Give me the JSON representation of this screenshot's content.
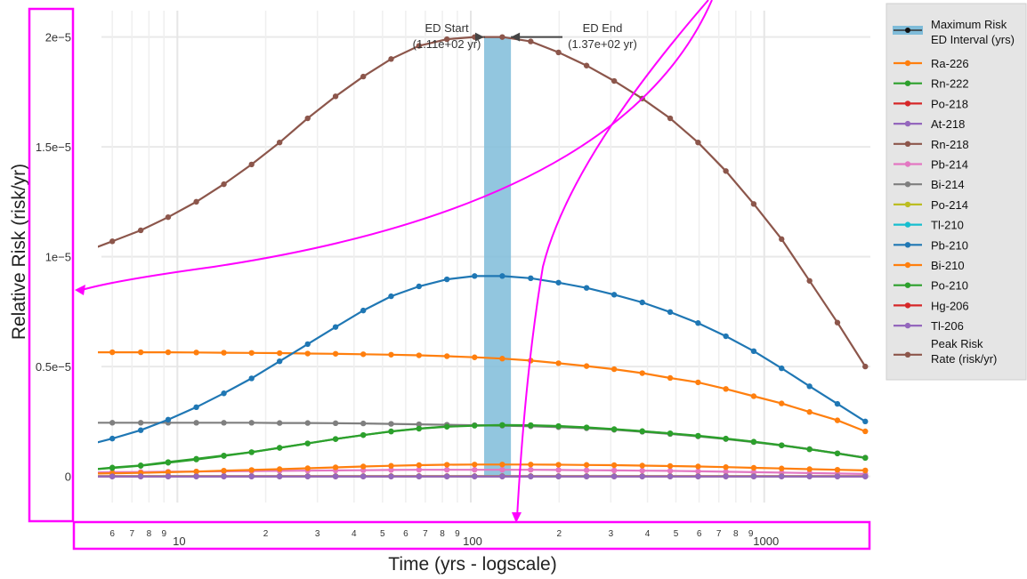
{
  "chart_data": {
    "type": "line",
    "xlabel": "Time (yrs - logscale)",
    "ylabel": "Relative Risk (risk/yr)",
    "x_scale": "log",
    "xlim": [
      4.5,
      2300
    ],
    "ylim": [
      -2e-06,
      2.12e-05
    ],
    "grid": true,
    "y_ticks": [
      {
        "value": 0,
        "label": "0"
      },
      {
        "value": 5e-06,
        "label": "0.5e−5"
      },
      {
        "value": 1e-05,
        "label": "1e−5"
      },
      {
        "value": 1.5e-05,
        "label": "1.5e−5"
      },
      {
        "value": 2e-05,
        "label": "2e−5"
      }
    ],
    "x_major_ticks": [
      {
        "value": 10,
        "label": "10"
      },
      {
        "value": 100,
        "label": "100"
      },
      {
        "value": 1000,
        "label": "1000"
      }
    ],
    "x_minor_ticks": [
      {
        "value": 6,
        "label": "6"
      },
      {
        "value": 7,
        "label": "7"
      },
      {
        "value": 8,
        "label": "8"
      },
      {
        "value": 9,
        "label": "9"
      },
      {
        "value": 20,
        "label": "2"
      },
      {
        "value": 30,
        "label": "3"
      },
      {
        "value": 40,
        "label": "4"
      },
      {
        "value": 50,
        "label": "5"
      },
      {
        "value": 60,
        "label": "6"
      },
      {
        "value": 70,
        "label": "7"
      },
      {
        "value": 80,
        "label": "8"
      },
      {
        "value": 90,
        "label": "9"
      },
      {
        "value": 200,
        "label": "2"
      },
      {
        "value": 300,
        "label": "3"
      },
      {
        "value": 400,
        "label": "4"
      },
      {
        "value": 500,
        "label": "5"
      },
      {
        "value": 600,
        "label": "6"
      },
      {
        "value": 700,
        "label": "7"
      },
      {
        "value": 800,
        "label": "8"
      },
      {
        "value": 900,
        "label": "9"
      }
    ],
    "x": [
      5,
      6,
      7.5,
      9.3,
      11.6,
      14.4,
      17.9,
      22.3,
      27.8,
      34.6,
      43,
      53.5,
      66.6,
      82.9,
      103,
      128,
      160,
      199,
      248,
      308,
      384,
      478,
      595,
      740,
      921,
      1146,
      1427,
      1776,
      2210
    ],
    "series": [
      {
        "name": "Ra-226",
        "color": "#ff7f0e",
        "values": [
          5.65e-06,
          5.65e-06,
          5.65e-06,
          5.65e-06,
          5.64e-06,
          5.63e-06,
          5.62e-06,
          5.61e-06,
          5.59e-06,
          5.58e-06,
          5.56e-06,
          5.54e-06,
          5.51e-06,
          5.47e-06,
          5.42e-06,
          5.36e-06,
          5.27e-06,
          5.15e-06,
          5.02e-06,
          4.88e-06,
          4.7e-06,
          4.48e-06,
          4.28e-06,
          3.98e-06,
          3.65e-06,
          3.32e-06,
          2.93e-06,
          2.55e-06,
          2.05e-06
        ]
      },
      {
        "name": "Rn-222",
        "color": "#2ca02c",
        "values": [
          3e-07,
          4e-07,
          5e-07,
          6.5e-07,
          8e-07,
          9.5e-07,
          1.1e-06,
          1.3e-06,
          1.5e-06,
          1.7e-06,
          1.88e-06,
          2.05e-06,
          2.18e-06,
          2.27e-06,
          2.32e-06,
          2.34e-06,
          2.33e-06,
          2.29e-06,
          2.23e-06,
          2.15e-06,
          2.06e-06,
          1.96e-06,
          1.85e-06,
          1.72e-06,
          1.58e-06,
          1.42e-06,
          1.24e-06,
          1.05e-06,
          8.5e-07
        ]
      },
      {
        "name": "Po-218",
        "color": "#d62728",
        "values": [
          1e-08,
          1e-08,
          1e-08,
          1e-08,
          1e-08,
          1e-08,
          1e-08,
          1e-08,
          1e-08,
          1e-08,
          1e-08,
          1e-08,
          1e-08,
          1e-08,
          1e-08,
          1e-08,
          1e-08,
          1e-08,
          1e-08,
          1e-08,
          1e-08,
          1e-08,
          1e-08,
          1e-08,
          1e-08,
          1e-08,
          1e-08,
          1e-08,
          1e-08
        ]
      },
      {
        "name": "At-218",
        "color": "#9467bd",
        "values": [
          0,
          0,
          0,
          0,
          0,
          0,
          0,
          0,
          0,
          0,
          0,
          0,
          0,
          0,
          0,
          0,
          0,
          0,
          0,
          0,
          0,
          0,
          0,
          0,
          0,
          0,
          0,
          0,
          0
        ]
      },
      {
        "name": "Rn-218",
        "color": "#8c564b",
        "values": [
          1.03e-05,
          1.07e-05,
          1.12e-05,
          1.18e-05,
          1.25e-05,
          1.33e-05,
          1.42e-05,
          1.52e-05,
          1.63e-05,
          1.73e-05,
          1.82e-05,
          1.9e-05,
          1.96e-05,
          1.99e-05,
          2e-05,
          2e-05,
          1.98e-05,
          1.93e-05,
          1.87e-05,
          1.8e-05,
          1.72e-05,
          1.63e-05,
          1.52e-05,
          1.39e-05,
          1.24e-05,
          1.08e-05,
          8.9e-06,
          7e-06,
          5e-06
        ]
      },
      {
        "name": "Pb-214",
        "color": "#e377c2",
        "values": [
          1.8e-07,
          1.9e-07,
          2e-07,
          2.1e-07,
          2.2e-07,
          2.3e-07,
          2.4e-07,
          2.5e-07,
          2.6e-07,
          2.7e-07,
          2.8e-07,
          2.9e-07,
          3e-07,
          3e-07,
          3e-07,
          3e-07,
          3e-07,
          2.9e-07,
          2.8e-07,
          2.7e-07,
          2.6e-07,
          2.5e-07,
          2.3e-07,
          2.1e-07,
          1.9e-07,
          1.7e-07,
          1.5e-07,
          1.3e-07,
          1.1e-07
        ]
      },
      {
        "name": "Bi-214",
        "color": "#7f7f7f",
        "values": [
          2.44e-06,
          2.44e-06,
          2.44e-06,
          2.44e-06,
          2.44e-06,
          2.44e-06,
          2.44e-06,
          2.43e-06,
          2.43e-06,
          2.42e-06,
          2.41e-06,
          2.39e-06,
          2.37e-06,
          2.35e-06,
          2.33e-06,
          2.31e-06,
          2.28e-06,
          2.24e-06,
          2.19e-06,
          2.12e-06,
          2.03e-06,
          1.93e-06,
          1.82e-06,
          1.7e-06,
          1.56e-06,
          1.41e-06,
          1.24e-06,
          1.05e-06,
          8.5e-07
        ]
      },
      {
        "name": "Po-214",
        "color": "#bcbd22",
        "values": [
          1e-08,
          1e-08,
          1e-08,
          1e-08,
          1e-08,
          1e-08,
          1e-08,
          1e-08,
          1e-08,
          1e-08,
          1e-08,
          1e-08,
          1e-08,
          1e-08,
          1e-08,
          1e-08,
          1e-08,
          1e-08,
          1e-08,
          1e-08,
          1e-08,
          1e-08,
          1e-08,
          1e-08,
          1e-08,
          1e-08,
          1e-08,
          1e-08,
          1e-08
        ]
      },
      {
        "name": "Tl-210",
        "color": "#17becf",
        "values": [
          0,
          0,
          0,
          0,
          0,
          0,
          0,
          0,
          0,
          0,
          0,
          0,
          0,
          0,
          0,
          0,
          0,
          0,
          0,
          0,
          0,
          0,
          0,
          0,
          0,
          0,
          0,
          0,
          0
        ]
      },
      {
        "name": "Pb-210",
        "color": "#1f77b4",
        "values": [
          1.45e-06,
          1.72e-06,
          2.1e-06,
          2.58e-06,
          3.15e-06,
          3.78e-06,
          4.46e-06,
          5.24e-06,
          6.02e-06,
          6.8e-06,
          7.55e-06,
          8.2e-06,
          8.65e-06,
          8.97e-06,
          9.12e-06,
          9.12e-06,
          9.02e-06,
          8.82e-06,
          8.58e-06,
          8.27e-06,
          7.92e-06,
          7.48e-06,
          6.98e-06,
          6.38e-06,
          5.7e-06,
          4.92e-06,
          4.1e-06,
          3.3e-06,
          2.5e-06
        ]
      },
      {
        "name": "Bi-210",
        "color": "#ff7f0e",
        "values": [
          1.2e-07,
          1.4e-07,
          1.6e-07,
          1.9e-07,
          2.2e-07,
          2.6e-07,
          2.9e-07,
          3.3e-07,
          3.7e-07,
          4.1e-07,
          4.5e-07,
          4.8e-07,
          5.1e-07,
          5.3e-07,
          5.4e-07,
          5.4e-07,
          5.4e-07,
          5.3e-07,
          5.2e-07,
          5.1e-07,
          4.9e-07,
          4.7e-07,
          4.5e-07,
          4.2e-07,
          3.9e-07,
          3.6e-07,
          3.3e-07,
          3e-07,
          2.7e-07
        ]
      },
      {
        "name": "Po-210",
        "color": "#2ca02c",
        "values": [
          3e-07,
          3.8e-07,
          4.8e-07,
          6.2e-07,
          7.7e-07,
          9.3e-07,
          1.1e-06,
          1.3e-06,
          1.5e-06,
          1.7e-06,
          1.88e-06,
          2.04e-06,
          2.17e-06,
          2.26e-06,
          2.31e-06,
          2.33e-06,
          2.32e-06,
          2.28e-06,
          2.22e-06,
          2.14e-06,
          2.05e-06,
          1.95e-06,
          1.84e-06,
          1.71e-06,
          1.57e-06,
          1.41e-06,
          1.23e-06,
          1.04e-06,
          8.4e-07
        ]
      },
      {
        "name": "Hg-206",
        "color": "#d62728",
        "values": [
          0,
          0,
          0,
          0,
          0,
          0,
          0,
          0,
          0,
          0,
          0,
          0,
          0,
          0,
          0,
          0,
          0,
          0,
          0,
          0,
          0,
          0,
          0,
          0,
          0,
          0,
          0,
          0,
          0
        ]
      },
      {
        "name": "Tl-206",
        "color": "#9467bd",
        "values": [
          0,
          0,
          0,
          0,
          0,
          0,
          0,
          0,
          0,
          0,
          0,
          0,
          0,
          0,
          0,
          0,
          0,
          0,
          0,
          0,
          0,
          0,
          0,
          0,
          0,
          0,
          0,
          0,
          0
        ]
      }
    ],
    "ed_interval": {
      "start": 111,
      "end": 137,
      "color": "#7fbcd9"
    },
    "annotations": [
      {
        "name": "ed-start",
        "line1": "ED Start",
        "line2": "(1.11e+02 yr)"
      },
      {
        "name": "ed-end",
        "line1": "ED End",
        "line2": "(1.37e+02 yr)"
      }
    ],
    "legend": {
      "position": "right",
      "items": [
        {
          "label": "Maximum Risk",
          "label2": "ED Interval (yrs)",
          "kind": "band",
          "color": "#7fbcd9"
        },
        {
          "label": "Ra-226",
          "color": "#ff7f0e"
        },
        {
          "label": "Rn-222",
          "color": "#2ca02c"
        },
        {
          "label": "Po-218",
          "color": "#d62728"
        },
        {
          "label": "At-218",
          "color": "#9467bd"
        },
        {
          "label": "Rn-218",
          "color": "#8c564b"
        },
        {
          "label": "Pb-214",
          "color": "#e377c2"
        },
        {
          "label": "Bi-214",
          "color": "#7f7f7f"
        },
        {
          "label": "Po-214",
          "color": "#bcbd22"
        },
        {
          "label": "Tl-210",
          "color": "#17becf"
        },
        {
          "label": "Pb-210",
          "color": "#1f77b4"
        },
        {
          "label": "Bi-210",
          "color": "#ff7f0e"
        },
        {
          "label": "Po-210",
          "color": "#2ca02c"
        },
        {
          "label": "Hg-206",
          "color": "#d62728"
        },
        {
          "label": "Tl-206",
          "color": "#9467bd"
        },
        {
          "label": "Peak Risk",
          "label2": "Rate (risk/yr)",
          "color": "#8c564b"
        }
      ]
    }
  },
  "overlay": {
    "highlight_color": "#ff00ff"
  }
}
